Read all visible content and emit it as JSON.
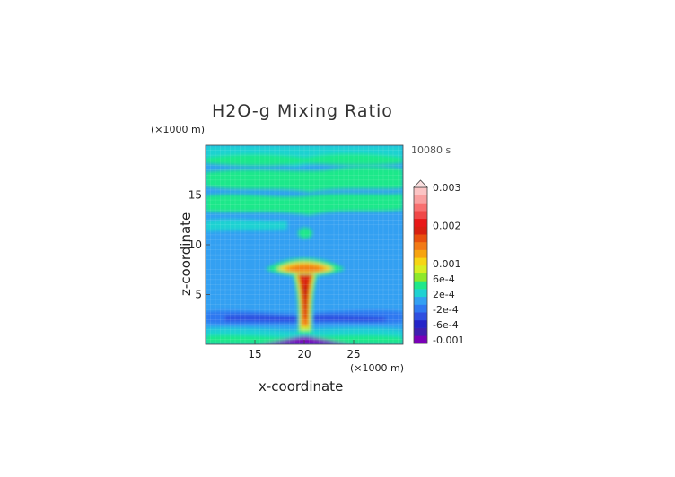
{
  "chart_data": {
    "type": "heatmap",
    "title": "H2O-g Mixing Ratio",
    "time_label": "10080 s",
    "xlabel": "x-coordinate",
    "ylabel": "z-coordinate",
    "x_unit": "(×1000 m)",
    "z_unit": "(×1000 m)",
    "xlim": [
      10,
      30
    ],
    "ylim": [
      0,
      20
    ],
    "x_ticks": [
      15,
      20,
      25
    ],
    "y_ticks": [
      5,
      10,
      15
    ],
    "colorbar": {
      "labels": [
        "0.003",
        "0.002",
        "0.001",
        "6e-4",
        "2e-4",
        "-2e-4",
        "-6e-4",
        "-0.001"
      ],
      "label_values": [
        0.003,
        0.002,
        0.001,
        0.0006,
        0.0002,
        -0.0002,
        -0.0006,
        -0.001
      ],
      "colors": [
        "#7a00b8",
        "#3f1fb0",
        "#2424c8",
        "#2f4fe0",
        "#2f78f0",
        "#33a0f2",
        "#1fd2d2",
        "#1fe88a",
        "#8ee82a",
        "#d8ee22",
        "#f6d514",
        "#f7a30f",
        "#f27a16",
        "#e8500e",
        "#d82010",
        "#e81818",
        "#f04848",
        "#f87070",
        "#f9a0a0",
        "#fbc4c4"
      ]
    }
  }
}
